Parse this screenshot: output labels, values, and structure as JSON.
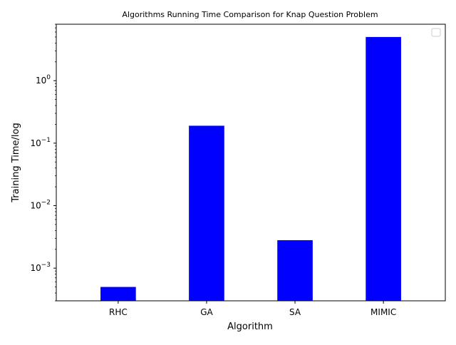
{
  "chart_data": {
    "type": "bar",
    "title": "Algorithms Running Time Comparison for Knap Question Problem",
    "xlabel": "Algorithm",
    "ylabel": "Training Time/log",
    "yscale": "log",
    "ylim": [
      0.0003,
      8
    ],
    "yticks": [
      0.001,
      0.01,
      0.1,
      1
    ],
    "ytick_labels": [
      {
        "base": "10",
        "exp": "−3"
      },
      {
        "base": "10",
        "exp": "−2"
      },
      {
        "base": "10",
        "exp": "−1"
      },
      {
        "base": "10",
        "exp": "0"
      }
    ],
    "categories": [
      "RHC",
      "GA",
      "SA",
      "MIMIC"
    ],
    "values": [
      0.0005,
      0.19,
      0.0028,
      5.0
    ],
    "bar_color": "#0000ff",
    "grid": false,
    "legend": {
      "placement": "top-right",
      "entries": []
    }
  }
}
